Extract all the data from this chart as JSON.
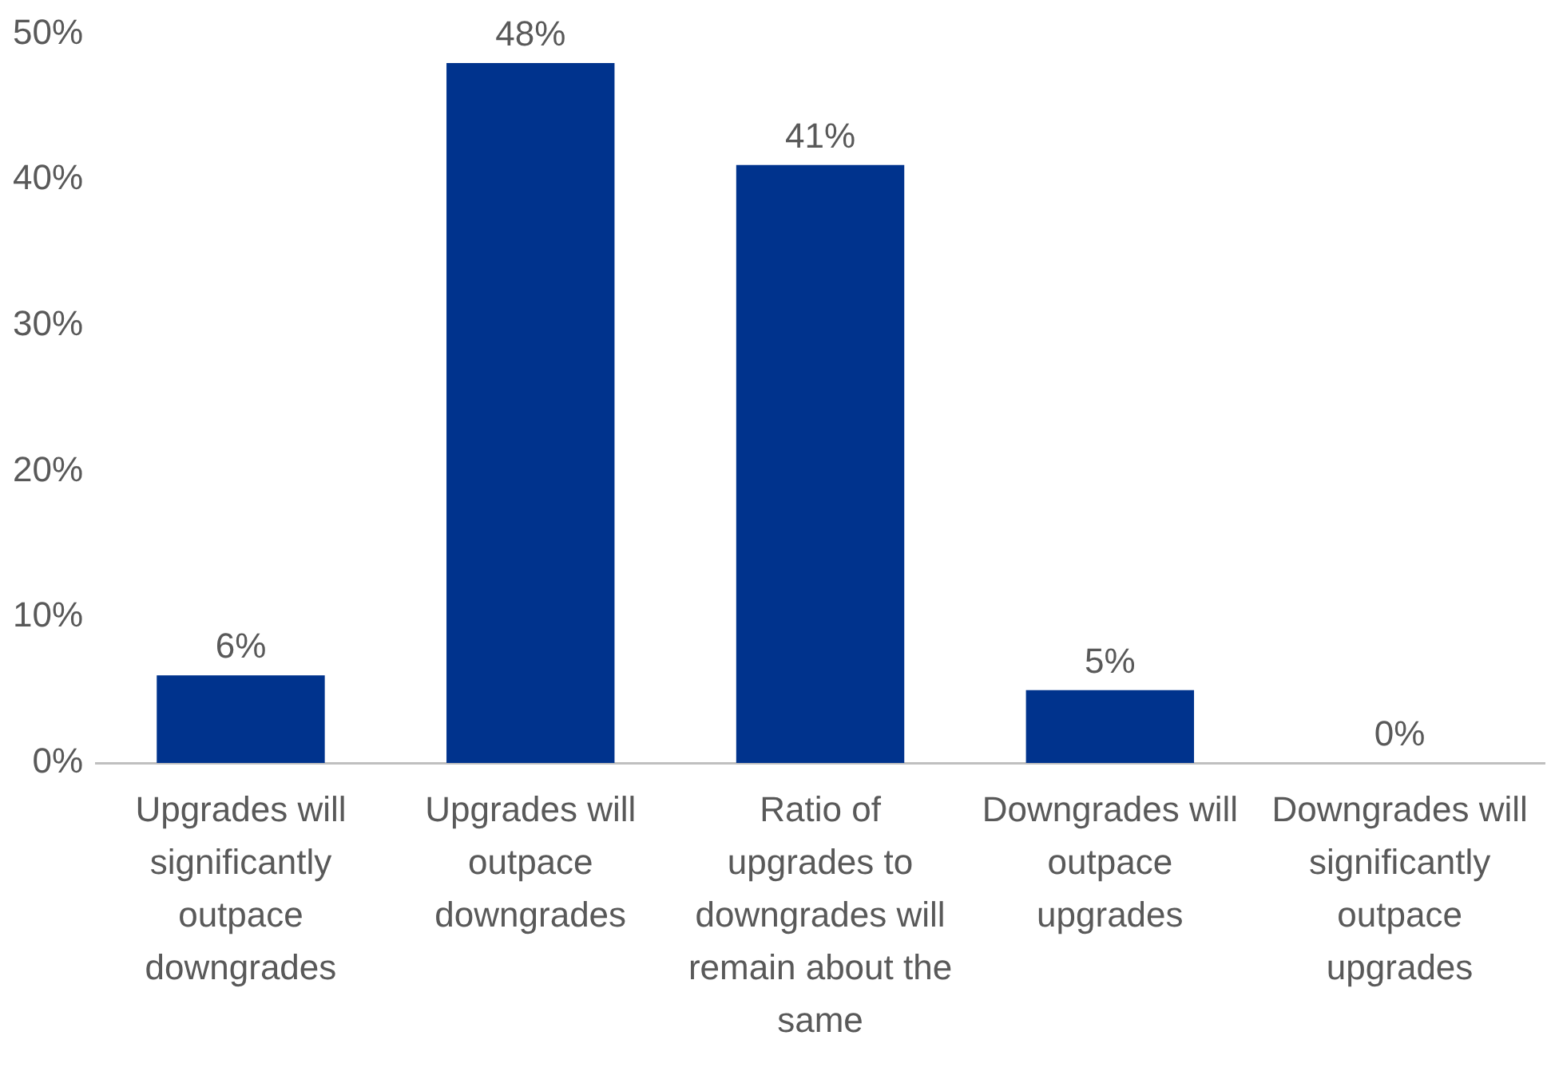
{
  "chart_data": {
    "type": "bar",
    "categories": [
      "Upgrades will significantly outpace downgrades",
      "Upgrades will outpace downgrades",
      "Ratio of upgrades to downgrades will remain about the same",
      "Downgrades will outpace upgrades",
      "Downgrades will significantly outpace upgrades"
    ],
    "values": [
      6,
      48,
      41,
      5,
      0
    ],
    "value_labels": [
      "6%",
      "48%",
      "41%",
      "5%",
      "0%"
    ],
    "color": "#00338d",
    "ylim": [
      0,
      50
    ],
    "yticks": [
      {
        "value": 0,
        "label": "0%"
      },
      {
        "value": 10,
        "label": "10%"
      },
      {
        "value": 20,
        "label": "20%"
      },
      {
        "value": 30,
        "label": "30%"
      },
      {
        "value": 40,
        "label": "40%"
      },
      {
        "value": 50,
        "label": "50%"
      }
    ],
    "grid": false,
    "legend": false
  }
}
